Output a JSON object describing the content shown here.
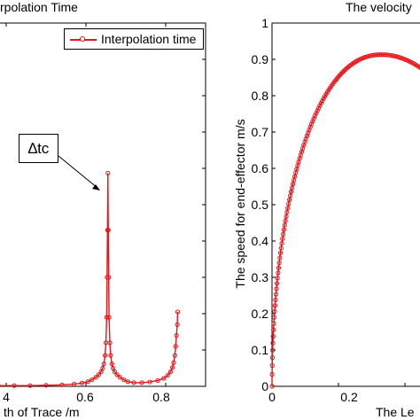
{
  "chart_data": [
    {
      "type": "line",
      "title": "rpolation Time",
      "xlabel": "th of Trace  /m",
      "ylabel": "",
      "xlim": [
        0.38,
        0.9
      ],
      "ylim": [
        0,
        1
      ],
      "x_ticks": [
        "4",
        "0.6",
        "0.8"
      ],
      "grid": false,
      "legend": {
        "entries": [
          "Interpolation time"
        ],
        "placement": "top-right"
      },
      "annotations": [
        {
          "text": "∆tc",
          "x": 0.655,
          "y": 0.587
        }
      ],
      "series": [
        {
          "name": "Interpolation time",
          "color": "#e8141a",
          "marker": "circle",
          "points": [
            [
              0.38,
              0.002
            ],
            [
              0.42,
              0.002
            ],
            [
              0.46,
              0.002
            ],
            [
              0.5,
              0.003
            ],
            [
              0.54,
              0.004
            ],
            [
              0.57,
              0.006
            ],
            [
              0.59,
              0.009
            ],
            [
              0.605,
              0.013
            ],
            [
              0.615,
              0.018
            ],
            [
              0.625,
              0.025
            ],
            [
              0.632,
              0.032
            ],
            [
              0.638,
              0.04
            ],
            [
              0.642,
              0.05
            ],
            [
              0.645,
              0.062
            ],
            [
              0.648,
              0.085
            ],
            [
              0.65,
              0.12
            ],
            [
              0.652,
              0.19
            ],
            [
              0.653,
              0.3
            ],
            [
              0.654,
              0.43
            ],
            [
              0.655,
              0.587
            ],
            [
              0.656,
              0.43
            ],
            [
              0.657,
              0.3
            ],
            [
              0.658,
              0.19
            ],
            [
              0.66,
              0.12
            ],
            [
              0.662,
              0.085
            ],
            [
              0.665,
              0.062
            ],
            [
              0.668,
              0.05
            ],
            [
              0.672,
              0.04
            ],
            [
              0.678,
              0.032
            ],
            [
              0.685,
              0.025
            ],
            [
              0.695,
              0.018
            ],
            [
              0.705,
              0.013
            ],
            [
              0.72,
              0.01
            ],
            [
              0.74,
              0.01
            ],
            [
              0.76,
              0.012
            ],
            [
              0.78,
              0.016
            ],
            [
              0.795,
              0.022
            ],
            [
              0.805,
              0.03
            ],
            [
              0.812,
              0.04
            ],
            [
              0.817,
              0.052
            ],
            [
              0.82,
              0.065
            ],
            [
              0.823,
              0.085
            ],
            [
              0.825,
              0.11
            ],
            [
              0.827,
              0.14
            ],
            [
              0.829,
              0.17
            ],
            [
              0.83,
              0.205
            ]
          ]
        }
      ]
    },
    {
      "type": "scatter",
      "title": "The velocity",
      "xlabel": "The Le",
      "ylabel": "The speed for end-effector m/s",
      "xlim": [
        0,
        0.48
      ],
      "ylim": [
        0,
        1
      ],
      "x_ticks": [
        "0",
        "0.2"
      ],
      "y_ticks": [
        "0",
        "0.1",
        "0.2",
        "0.3",
        "0.4",
        "0.5",
        "0.6",
        "0.7",
        "0.8",
        "0.9",
        "1"
      ],
      "grid": false,
      "series": [
        {
          "color": "#e8141a",
          "marker": "circle",
          "peak_x": 0.33,
          "peak_y": 0.913,
          "x_start": 0,
          "x_end": 0.47
        }
      ]
    }
  ]
}
